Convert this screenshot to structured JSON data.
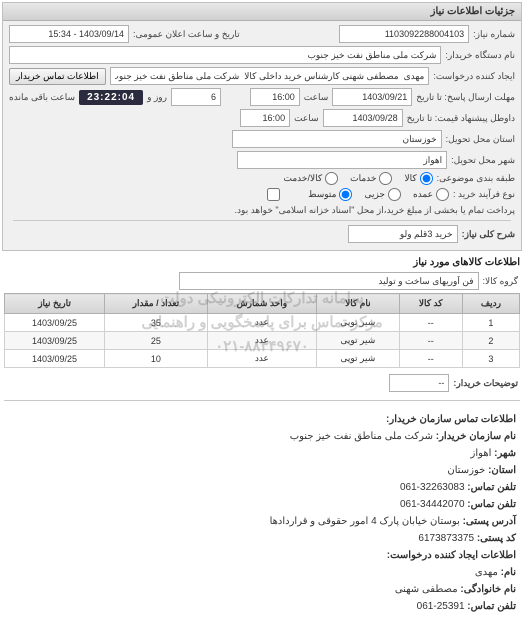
{
  "panel_title": "جزئیات اطلاعات نیاز",
  "labels": {
    "need_no": "شماره نیاز:",
    "pub_datetime": "تاریخ و ساعت اعلان عمومی:",
    "buyer_org": "نام دستگاه خریدار:",
    "requester": "ایجاد کننده درخواست:",
    "reply_until": "مهلت ارسال پاسخ: تا تاریخ",
    "sa3at": "ساعت",
    "valid_until": "داوطل پیشنهاد قیمت: تا تاریخ",
    "rooz": "روز و",
    "remaining": "ساعت باقی مانده",
    "province": "استان محل تحویل:",
    "city": "شهر محل تحویل:",
    "category": "طبقه بندی موضوعی:",
    "cat_kala": "کالا",
    "cat_khadamat": "خدمات",
    "cat_both": "کالا/خدمت",
    "buy_type": "نوع فرآیند خرید :",
    "buy_metavaset": "متوسط",
    "buy_jazee": "جزیی",
    "buy_omdeh": "عمده",
    "payment_note": "پرداخت تمام یا بخشی از مبلغ خرید،از محل \"اسناد خزانه اسلامی\" خواهد بود.",
    "contact_btn": "اطلاعات تماس خریدار",
    "need_title": "شرح کلی نیاز:",
    "need_items_title": "اطلاعات کالاهای مورد نیاز",
    "group": "گروه کالا:",
    "buyer_desc": "توضیحات خریدار:"
  },
  "values": {
    "need_no": "1103092288004103",
    "pub_datetime": "1403/09/14 - 15:34",
    "buyer_org": "شرکت ملی مناطق نفت خیز جنوب",
    "requester": "مهدی  مصطفی شهنی کارشناس خرید داخلی کالا  شرکت ملی مناطق نفت خیز جنوب",
    "reply_until_date": "1403/09/21",
    "reply_until_time": "16:00",
    "days": "6",
    "countdown": "23:22:04",
    "valid_until_date": "1403/09/28",
    "valid_until_time": "16:00",
    "province": "خوزستان",
    "city": "اهواز",
    "need_title": "خرید 3قلم ولو",
    "group": "فن آوریهای ساخت و تولید",
    "buyer_desc": "--"
  },
  "table": {
    "columns": [
      "ردیف",
      "کد کالا",
      "نام کالا",
      "واحد شمارش",
      "تعداد / مقدار",
      "تاریخ نیاز"
    ],
    "rows": [
      [
        "1",
        "--",
        "شیر توپی",
        "عدد",
        "35",
        "1403/09/25"
      ],
      [
        "2",
        "--",
        "شیر توپی",
        "عدد",
        "25",
        "1403/09/25"
      ],
      [
        "3",
        "--",
        "شیر توپی",
        "عدد",
        "10",
        "1403/09/25"
      ]
    ]
  },
  "watermark": {
    "line1": "سامانه تدارکات الکترونیکی دولت",
    "line2": "مرکز تماس برای پاسخگویی و راهنمایی",
    "line3": "۰۲۱-۸۸۳۴۹۶۷۰"
  },
  "contact_info": {
    "title": "اطلاعات تماس سازمان خریدار:",
    "org_label": "نام سازمان خریدار:",
    "org": "شرکت ملی مناطق نفت خیز جنوب",
    "city_label": "شهر:",
    "city": "اهواز",
    "province_label": "استان:",
    "province": "خوزستان",
    "tel_label": "تلفن تماس:",
    "tel": "32263083-061",
    "fax_label": "تلفن تماس:",
    "fax": "34442070-061",
    "addr_label": "آدرس پستی:",
    "addr": "بوستان خیابان پارک 4 امور حقوقی و قراردادها",
    "zip_label": "کد پستی:",
    "zip": "6173873375",
    "req_title": "اطلاعات ایجاد کننده درخواست:",
    "fname_label": "نام:",
    "fname": "مهدی",
    "lname_label": "نام خانوادگی:",
    "lname": "مصطفی شهنی",
    "ctel_label": "تلفن تماس:",
    "ctel": "25391-061"
  }
}
